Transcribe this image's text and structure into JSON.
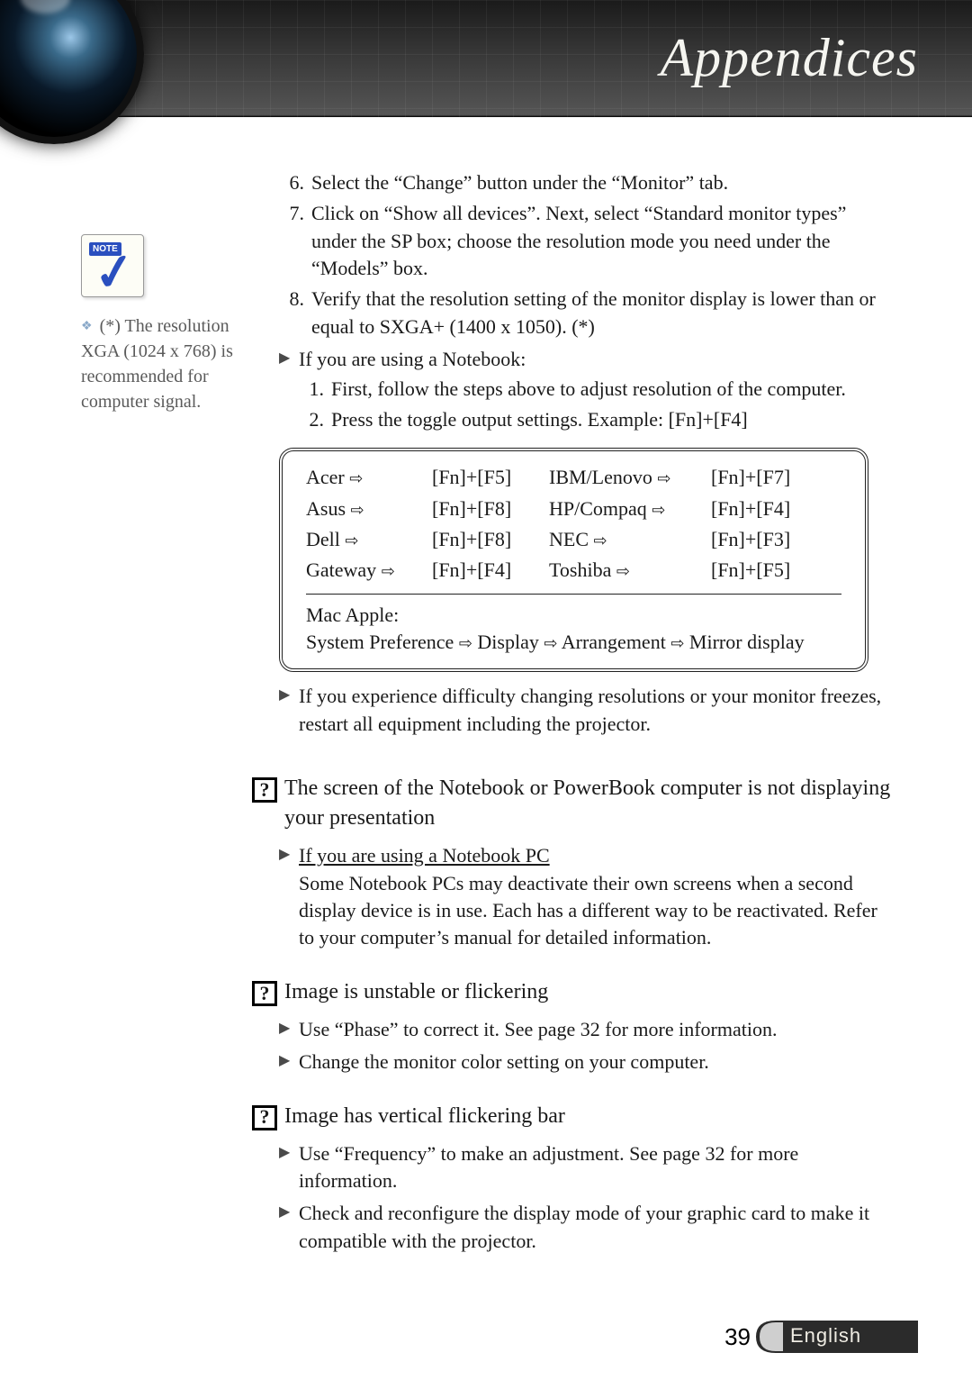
{
  "header": {
    "title": "Appendices"
  },
  "note": {
    "tab": "NOTE",
    "text": "(*) The resolution XGA (1024 x 768) is recommended for computer signal."
  },
  "steps_cont": [
    {
      "n": "6.",
      "t": "Select the “Change” button under the “Monitor” tab."
    },
    {
      "n": "7.",
      "t": "Click on “Show all devices”. Next, select “Standard monitor types” under the SP box; choose the resolution mode you need under the “Models” box."
    },
    {
      "n": "8.",
      "t": "Verify that the resolution setting of the monitor display is lower than or equal to SXGA+ (1400 x 1050). (*)"
    }
  ],
  "notebook_intro": "If you are using a Notebook:",
  "notebook_steps": [
    {
      "n": "1.",
      "t": "First, follow the steps above to adjust resolution of the computer."
    },
    {
      "n": "2.",
      "t": "Press the toggle output settings. Example: [Fn]+[F4]"
    }
  ],
  "kb": {
    "rows": [
      [
        "Acer",
        "[Fn]+[F5]",
        "IBM/Lenovo",
        "[Fn]+[F7]"
      ],
      [
        "Asus",
        "[Fn]+[F8]",
        "HP/Compaq",
        "[Fn]+[F4]"
      ],
      [
        "Dell",
        "[Fn]+[F8]",
        "NEC",
        "[Fn]+[F3]"
      ],
      [
        "Gateway",
        "[Fn]+[F4]",
        "Toshiba",
        "[Fn]+[F5]"
      ]
    ],
    "mac_label": "Mac Apple:",
    "mac_path": [
      "System Preference",
      "Display",
      "Arrangement",
      "Mirror display"
    ]
  },
  "difficulty": "If you experience difficulty changing resolutions or your monitor freezes, restart all equipment including the projector.",
  "q1": {
    "title": "The screen of the Notebook or PowerBook computer is not displaying your presentation",
    "sub_u": "If you are using a Notebook PC",
    "sub_t": "Some Notebook PCs may deactivate their own screens when a second display device is in use. Each has a different way to be reactivated. Refer to your computer’s manual for detailed information."
  },
  "q2": {
    "title": "Image is unstable or flickering",
    "items": [
      "Use “Phase” to correct it. See page 32 for more information.",
      "Change the monitor color setting on your computer."
    ]
  },
  "q3": {
    "title": "Image has vertical flickering bar",
    "items": [
      "Use “Frequency” to make an adjustment. See page 32 for more information.",
      "Check and reconfigure the display mode of your graphic card to make it compatible with the projector."
    ]
  },
  "footer": {
    "page": "39",
    "lang": "English"
  },
  "glyphs": {
    "arrow": "⇨",
    "tri": "▶",
    "diamond": "❖",
    "q": "?"
  }
}
